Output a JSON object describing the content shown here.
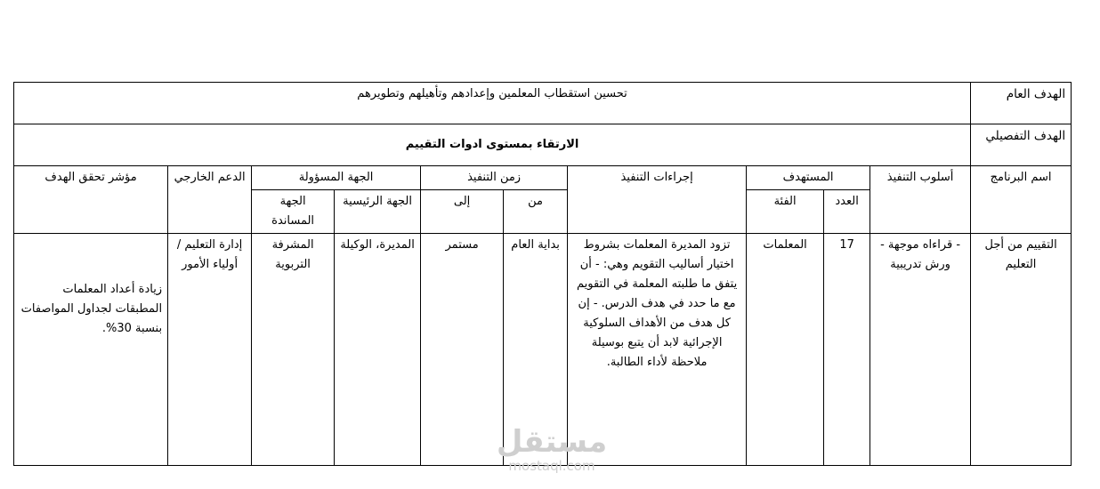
{
  "general_goal": {
    "label": "الهدف العام",
    "value": "تحسين استقطاب المعلمين وإعدادهم وتأهيلهم وتطويرهم"
  },
  "detailed_goal": {
    "label": "الهدف التفصيلي",
    "value": "الارتقاء بمستوى ادوات التقييم"
  },
  "headers": {
    "program_name": "اسم البرنامج",
    "method": "أسلوب التنفيذ",
    "target": "المستهدف",
    "count": "العدد",
    "category": "الفئة",
    "procedures": "إجراءات التنفيذ",
    "time": "زمن التنفيذ",
    "from": "من",
    "to": "إلى",
    "responsible": "الجهة المسؤولة",
    "main_party": "الجهة الرئيسية",
    "support_party": "الجهة المساندة",
    "external_support": "الدعم الخارجي",
    "indicator": "مؤشر تحقق الهدف"
  },
  "row": {
    "program_name": "التقييم من أجل التعليم",
    "method": "- قراءاه موجهة - ورش تدريبية",
    "count": "17",
    "category": "المعلمات",
    "procedures": "تزود المديرة المعلمات بشروط اختيار أساليب التقويم وهي: - أن يتفق ما طلبته المعلمة في التقويم مع ما حدد في هدف الدرس. - إن كل هدف من الأهداف السلوكية الإجرائية لابد أن يتبع بوسيلة ملاحظة لأداء الطالبة.",
    "from": "بداية العام",
    "to": "مستمر",
    "main_party": "المديرة، الوكيلة",
    "support_party": "المشرفة التربوية",
    "external_support": "إدارة التعليم / أولياء الأمور",
    "indicator": "زيادة أعداد المعلمات المطبقات لجداول المواصفات بنسبة 30%."
  },
  "watermark": {
    "arabic": "مستقل",
    "latin": "mostaql.com"
  }
}
